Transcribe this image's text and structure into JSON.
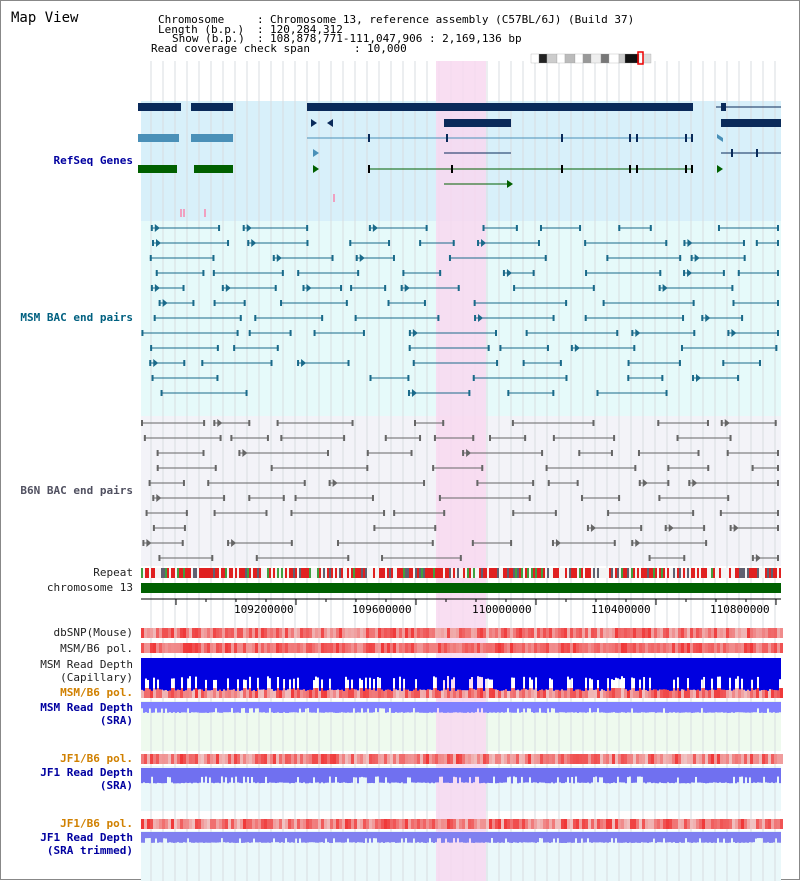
{
  "title": "Map View",
  "header": {
    "chromosome_label": "Chromosome",
    "chromosome_value": "Chromosome 13, reference assembly (C57BL/6J) (Build 37)",
    "length_label": "Length (b.p.)",
    "length_value": "120,284,312",
    "show_label": "Show (b.p.)",
    "show_value": "108,878,771-111,047,906 : 2,169,136 bp",
    "coverage_label": "Read coverage check span",
    "coverage_value": "10,000"
  },
  "tracks": {
    "refseq": "RefSeq Genes",
    "msm_bac": "MSM BAC end pairs",
    "b6n_bac": "B6N BAC end pairs",
    "repeat": "Repeat",
    "chromosome": "chromosome 13",
    "dbsnp": "dbSNP(Mouse)",
    "msm_b6_pol_1": "MSM/B6 pol.",
    "msm_depth_cap_1": "MSM Read Depth",
    "msm_depth_cap_2": "(Capillary)",
    "msm_b6_pol_2": "MSM/B6 pol.",
    "msm_depth_sra_1": "MSM Read Depth",
    "msm_depth_sra_2": "(SRA)",
    "jf1_b6_pol_1": "JF1/B6 pol.",
    "jf1_depth_sra_1": "JF1 Read Depth",
    "jf1_depth_sra_2": "(SRA)",
    "jf1_b6_pol_2": "JF1/B6 pol.",
    "jf1_depth_trim_1": "JF1 Read Depth",
    "jf1_depth_trim_2": "(SRA trimmed)"
  },
  "axis": {
    "ticks": [
      "109200000",
      "109600000",
      "110000000",
      "110400000",
      "110800000"
    ]
  },
  "colors": {
    "highlight": "#f8d8f0",
    "refseq_bg": "#d8f0fa",
    "msm_bg": "#e6fafa",
    "b6n_bg": "#f3f3f8",
    "gene_dark": "#0a2a5a",
    "gene_light": "#4a90b8",
    "gene_green": "#006000",
    "bac_teal": "#1a6a8a",
    "bac_gray": "#666666",
    "chrom_bar": "#006000",
    "snp_red": "#ff4040",
    "depth_blue": "#0000e0",
    "depth_light": "#8080ff"
  }
}
